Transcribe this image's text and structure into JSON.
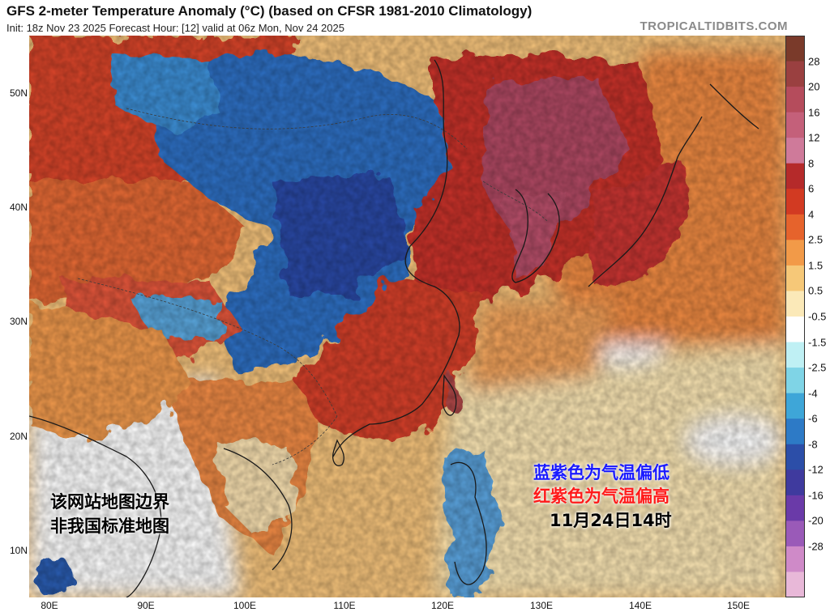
{
  "header": {
    "title": "GFS 2-meter Temperature Anomaly (°C) (based on CFSR 1981-2010 Climatology)",
    "subtitle": "Init: 18z Nov 23 2025   Forecast Hour: [12]   valid at 06z Mon, Nov 24 2025",
    "brand": "TROPICALTIDBITS.COM"
  },
  "axes": {
    "lat_labels": [
      "50N",
      "40N",
      "30N",
      "20N",
      "10N"
    ],
    "lon_labels": [
      "80E",
      "90E",
      "100E",
      "110E",
      "120E",
      "130E",
      "140E",
      "150E"
    ]
  },
  "colorbar": {
    "labels": [
      "28",
      "20",
      "16",
      "12",
      "8",
      "6",
      "4",
      "2.5",
      "1.5",
      "0.5",
      "-0.5",
      "-1.5",
      "-2.5",
      "-4",
      "-6",
      "-8",
      "-12",
      "-16",
      "-20",
      "-28"
    ],
    "colors": [
      "#7a3a2a",
      "#9a4040",
      "#b54c5c",
      "#c4607a",
      "#cf7a9a",
      "#b52a2a",
      "#d23a22",
      "#e6632c",
      "#f29a48",
      "#f6c878",
      "#fbe9b8",
      "#ffffff",
      "#bff0f4",
      "#7fd4e6",
      "#3ea6d8",
      "#2d7ac6",
      "#2c4ea8",
      "#3f3a9e",
      "#6a3aa8",
      "#9a5ab8",
      "#cf8ac8",
      "#e8b8d8"
    ]
  },
  "annotations": {
    "left_line1": "该网站地图边界",
    "left_line2": "非我国标准地图",
    "right_line1": "蓝紫色为气温偏低",
    "right_line2": "红紫色为气温偏高",
    "right_line3": "11月24日14时",
    "blue_color": "#1a1aff",
    "red_color": "#ff1a1a"
  }
}
